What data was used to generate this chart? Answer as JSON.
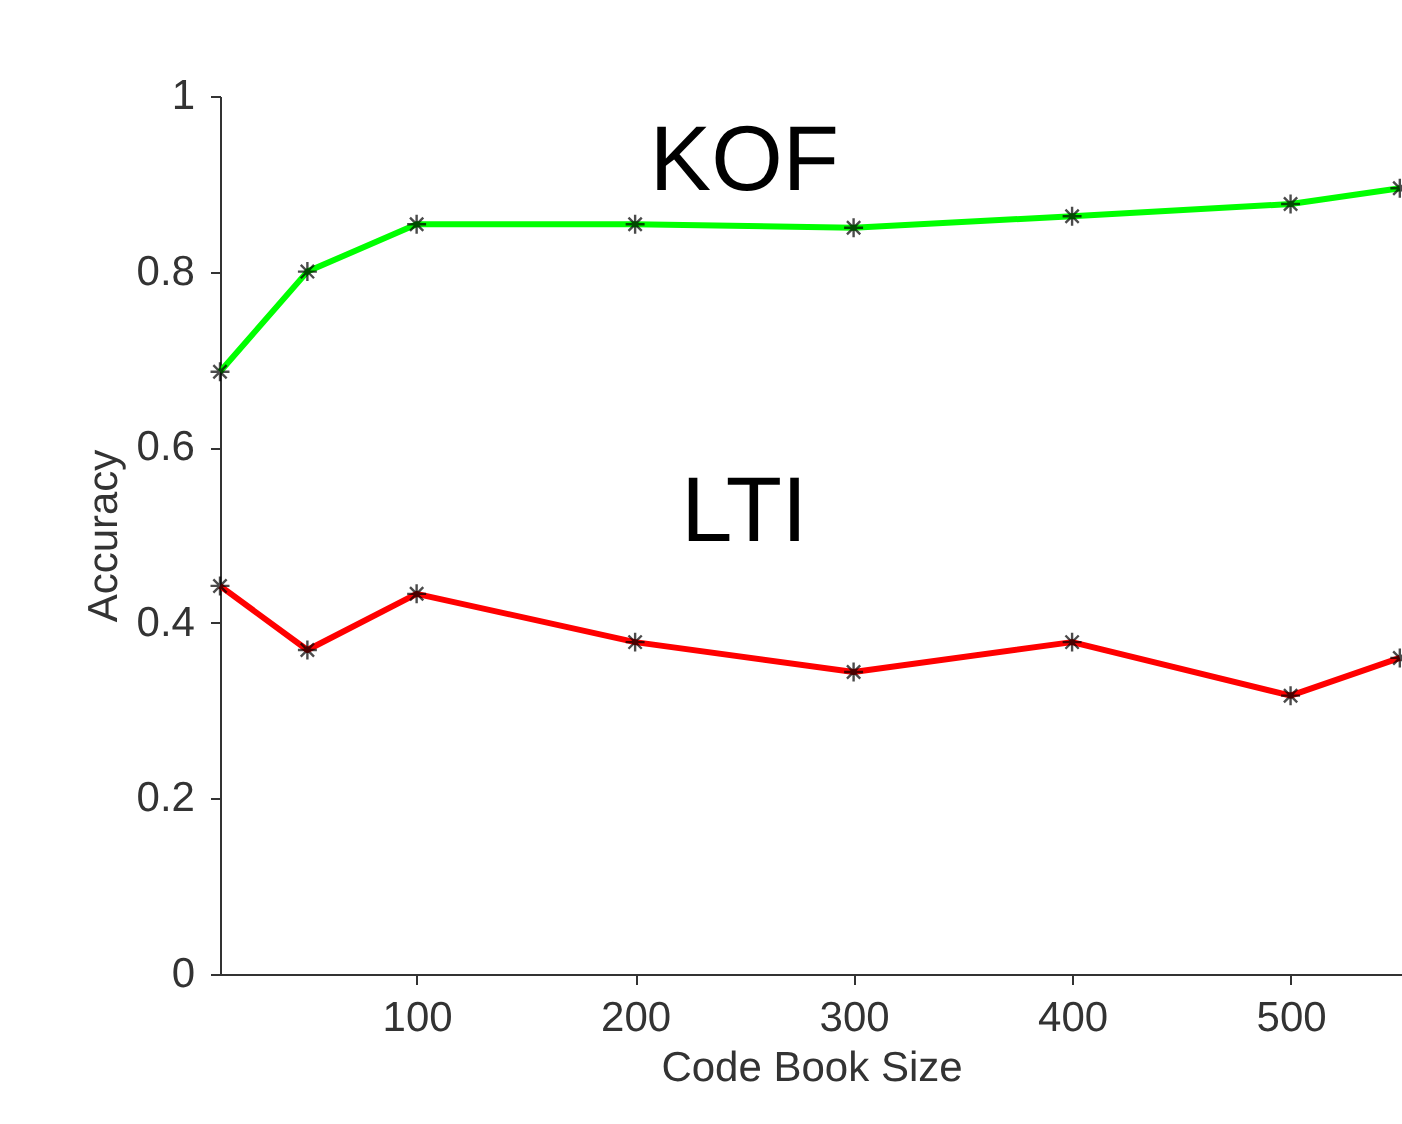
{
  "chart_data": {
    "type": "line",
    "xlabel": "Code Book Size",
    "ylabel": "Accuracy",
    "x": [
      10,
      50,
      100,
      200,
      300,
      400,
      500,
      550
    ],
    "series": [
      {
        "name": "KOF",
        "color": "#00ff00",
        "values": [
          0.686,
          0.8,
          0.854,
          0.854,
          0.85,
          0.863,
          0.877,
          0.895
        ]
      },
      {
        "name": "LTI",
        "color": "#ff0000",
        "values": [
          0.442,
          0.369,
          0.433,
          0.378,
          0.344,
          0.378,
          0.317,
          0.36
        ]
      }
    ],
    "xlim": [
      10,
      551
    ],
    "ylim": [
      0,
      1
    ],
    "xticks": [
      100,
      200,
      300,
      400,
      500
    ],
    "yticks": [
      0,
      0.2,
      0.4,
      0.6,
      0.8,
      1
    ],
    "grid": false,
    "legend": false,
    "marker": "cross",
    "line_style": "solid"
  }
}
